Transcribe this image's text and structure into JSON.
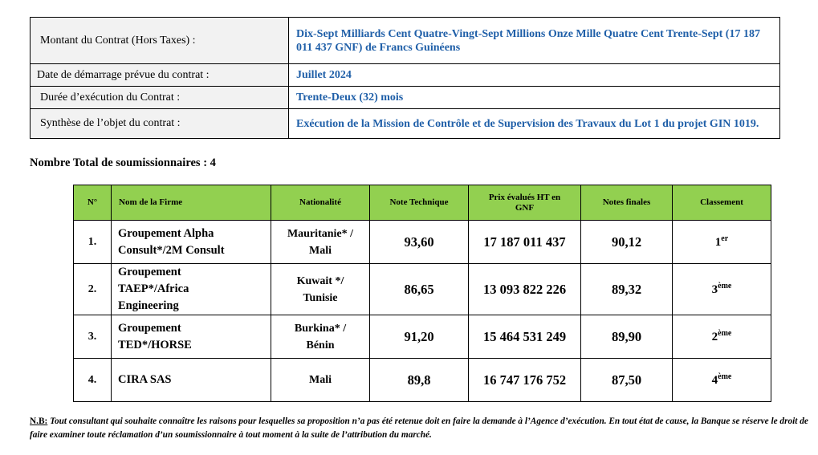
{
  "contract": {
    "rows": [
      {
        "label": "Montant du Contrat (Hors Taxes) :",
        "value": "Dix-Sept Milliards Cent Quatre-Vingt-Sept Millions Onze Mille Quatre Cent Trente-Sept (17 187 011 437 GNF) de Francs Guinéens"
      },
      {
        "label": "Date de démarrage prévue du contrat :",
        "value": "Juillet 2024"
      },
      {
        "label": "Durée d’exécution du Contrat :",
        "value": "Trente-Deux (32) mois"
      },
      {
        "label": "Synthèse de l’objet du contrat :",
        "value": "Exécution de la Mission de Contrôle et de Supervision des Travaux du Lot 1 du projet GIN 1019."
      }
    ]
  },
  "total_bidders": "Nombre Total de soumissionnaires : 4",
  "bids": {
    "headers": [
      "N°",
      "Nom de la Firme",
      "Nationalité",
      "Note Technique",
      "Prix évalués HT en GNF",
      "Notes finales",
      "Classement"
    ],
    "rows": [
      {
        "n": "1.",
        "firm": "Groupement Alpha Consult*/2M Consult",
        "nationality": "Mauritanie* / Mali",
        "tech": "93,60",
        "price": "17 187 011 437",
        "final": "90,12",
        "rank": "1",
        "rank_sup": "er"
      },
      {
        "n": "2.",
        "firm": "Groupement TAEP*/Africa Engineering",
        "nationality": "Kuwait */ Tunisie",
        "tech": "86,65",
        "price": "13 093 822 226",
        "final": "89,32",
        "rank": "3",
        "rank_sup": "ème"
      },
      {
        "n": "3.",
        "firm": "Groupement TED*/HORSE",
        "nationality": "Burkina* / Bénin",
        "tech": "91,20",
        "price": "15 464 531 249",
        "final": "89,90",
        "rank": "2",
        "rank_sup": "ème"
      },
      {
        "n": "4.",
        "firm": "CIRA SAS",
        "nationality": "Mali",
        "tech": "89,8",
        "price": "16 747 176 752",
        "final": "87,50",
        "rank": "4",
        "rank_sup": "ème"
      }
    ]
  },
  "note": {
    "prefix": "N.B:",
    "text": " Tout consultant qui souhaite connaître les raisons pour lesquelles sa proposition n’a pas été retenue doit en faire la demande à l’Agence d’exécution. En tout état de cause, la Banque se réserve le droit de faire examiner toute réclamation d’un soumissionnaire à tout moment à la suite de l’attribution du marché."
  }
}
